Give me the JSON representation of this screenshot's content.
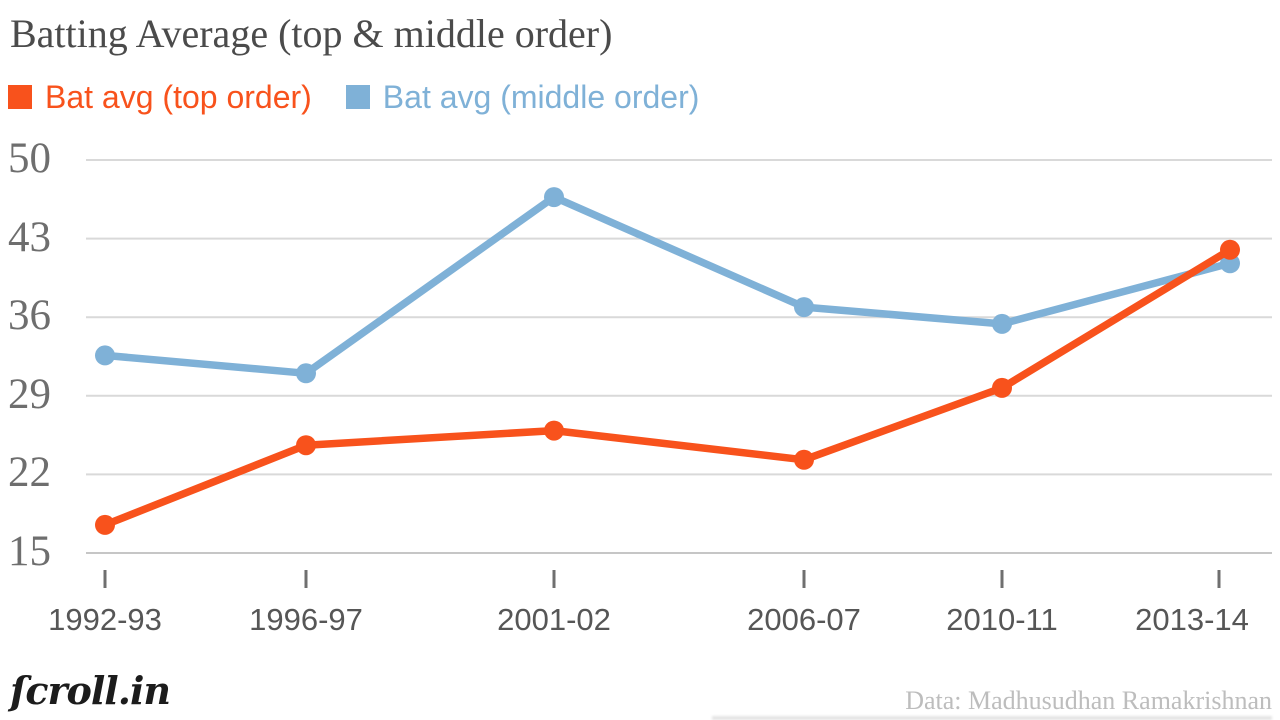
{
  "title": "Batting Average (top & middle order)",
  "legend": [
    {
      "label": "Bat avg (top order)",
      "color": "#f8521c"
    },
    {
      "label": "Bat avg (middle order)",
      "color": "#7fb1d7"
    }
  ],
  "footer": {
    "logo_text": "ſcroll.in",
    "attribution": "Data: Madhusudhan Ramakrishnan"
  },
  "colors": {
    "top_order": "#f8521c",
    "middle_order": "#7fb1d7",
    "gridline": "#d9d9d9",
    "baseline": "#c6c6c6",
    "tick": "#6f6f6f",
    "title_text": "#4b4b4b",
    "y_label_text": "#6e6e6e",
    "x_label_text": "#565656"
  },
  "chart_data": {
    "type": "line",
    "title": "Batting Average (top & middle order)",
    "categories": [
      "1992-93",
      "1996-97",
      "2001-02",
      "2006-07",
      "2010-11",
      "2013-14"
    ],
    "series": [
      {
        "name": "Bat avg (top order)",
        "color": "#f8521c",
        "values": [
          17.5,
          24.6,
          25.9,
          23.3,
          29.7,
          42.0
        ]
      },
      {
        "name": "Bat avg (middle order)",
        "color": "#7fb1d7",
        "values": [
          32.6,
          31.0,
          46.7,
          36.9,
          35.4,
          40.8
        ]
      }
    ],
    "xlabel": "",
    "ylabel": "",
    "yticks": [
      50,
      43,
      36,
      29,
      22,
      15
    ],
    "ylim": [
      15,
      50
    ],
    "grid": "horizontal",
    "legend_position": "top-left",
    "markers": "circle"
  }
}
